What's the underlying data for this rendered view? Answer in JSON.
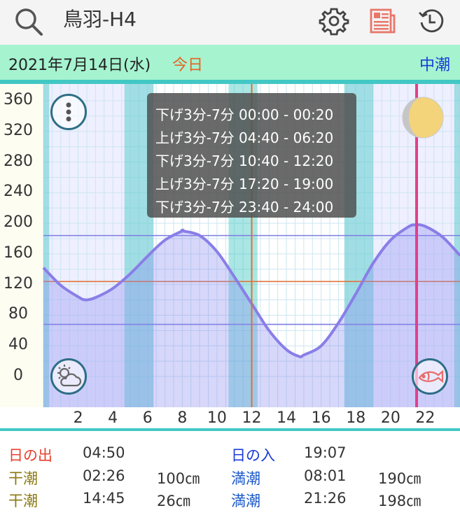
{
  "header": {
    "title": "鳥羽-H4",
    "icons": [
      "search-icon",
      "settings-icon",
      "news-icon",
      "history-icon"
    ]
  },
  "date_bar": {
    "date": "2021年7月14日(水)",
    "today_label": "今日",
    "tide_type": "中潮"
  },
  "chart": {
    "y_ticks": [
      "360",
      "320",
      "280",
      "240",
      "200",
      "160",
      "120",
      "80",
      "40",
      "0"
    ],
    "x_ticks": [
      "2",
      "4",
      "6",
      "8",
      "10",
      "12",
      "14",
      "16",
      "18",
      "20",
      "22"
    ],
    "tooltip": [
      "下げ3分-7分 00:00 - 00:20",
      "上げ3分-7分 04:40 - 06:20",
      "下げ3分-7分 10:40 - 12:20",
      "上げ3分-7分 17:20 - 19:00",
      "下げ3分-7分 23:40 - 24:00"
    ]
  },
  "chart_data": {
    "type": "line",
    "xlabel": "",
    "ylabel": "",
    "xlim": [
      0,
      24
    ],
    "ylim": [
      0,
      360
    ],
    "series": [
      {
        "x": [
          0,
          1,
          2,
          2.43,
          3,
          4,
          5,
          6,
          7,
          8,
          8.02,
          9,
          10,
          11,
          12,
          13,
          14,
          14.75,
          15,
          16,
          17,
          18,
          19,
          20,
          21,
          21.43,
          22,
          23,
          24
        ],
        "values": [
          142,
          119,
          104,
          100,
          103,
          115,
          134,
          157,
          178,
          190,
          190,
          184,
          163,
          130,
          95,
          60,
          35,
          26,
          28,
          40,
          70,
          108,
          148,
          178,
          195,
          198,
          196,
          182,
          158
        ]
      }
    ],
    "reference_lines": [
      {
        "y": 184,
        "color": "#7d7de0"
      },
      {
        "y": 124,
        "color": "#e0733a"
      },
      {
        "y": 68,
        "color": "#7d7de0"
      }
    ],
    "current_time_marker": 12,
    "now_marker": 21.5
  },
  "info": {
    "sunrise_label": "日の出",
    "sunrise_time": "04:50",
    "sunset_label": "日の入",
    "sunset_time": "19:07",
    "rows": [
      {
        "low_label": "干潮",
        "low_time": "02:26",
        "low_height": "100㎝",
        "high_label": "満潮",
        "high_time": "08:01",
        "high_height": "190㎝"
      },
      {
        "low_label": "干潮",
        "low_time": "14:45",
        "low_height": "26㎝",
        "high_label": "満潮",
        "high_time": "21:26",
        "high_height": "198㎝"
      }
    ]
  },
  "colors": {
    "accent": "#42c8c4",
    "curve": "#8a7ee8",
    "today": "#e8611e",
    "now_marker": "#e0408a"
  }
}
